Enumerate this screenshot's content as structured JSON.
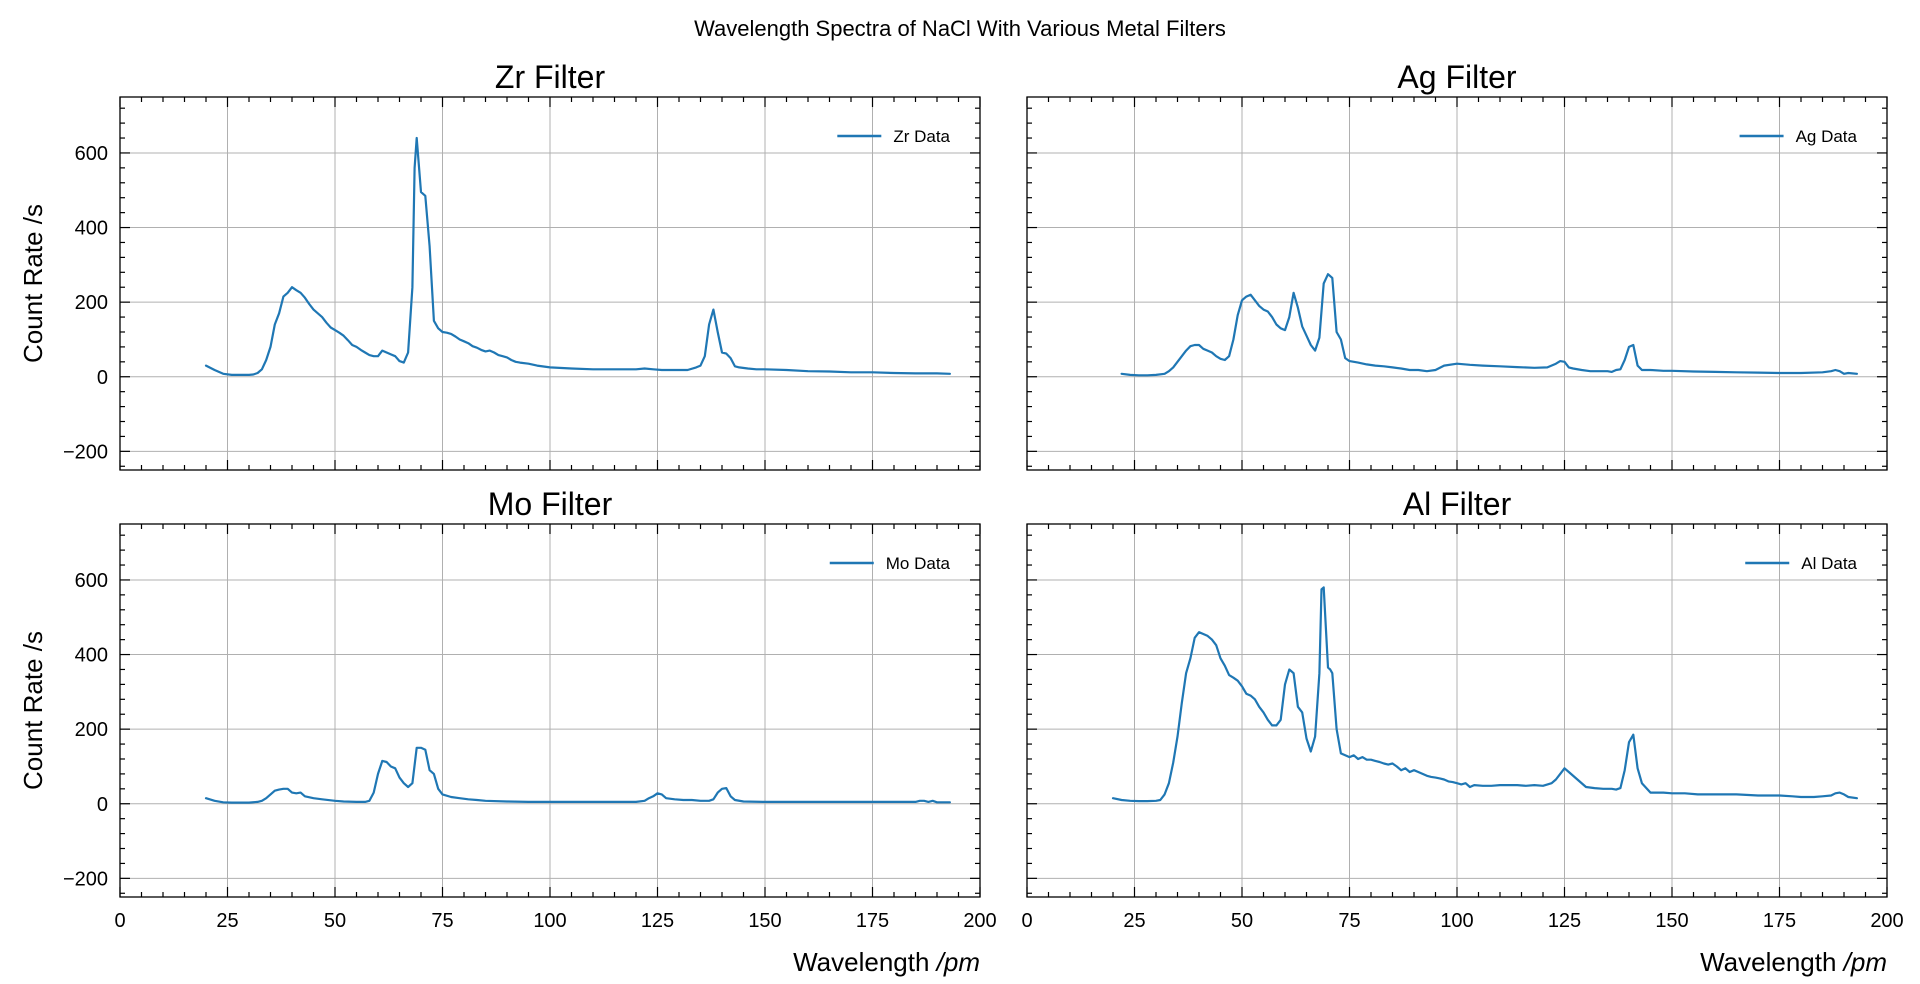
{
  "figure": {
    "suptitle": "Wavelength Spectra of NaCl With Various Metal Filters",
    "line_color": "#1f77b4"
  },
  "chart_data": [
    {
      "type": "line",
      "title": "Zr Filter",
      "xlabel": "",
      "ylabel": "Count Rate /s",
      "xlim": [
        0,
        200
      ],
      "ylim": [
        -250,
        750
      ],
      "xticks": [
        0,
        25,
        50,
        75,
        100,
        125,
        150,
        175,
        200
      ],
      "yticks": [
        -200,
        0,
        200,
        400,
        600
      ],
      "show_xtick_labels": false,
      "show_ytick_labels": true,
      "grid": true,
      "legend_position": "top-right",
      "series": [
        {
          "name": "Zr Data",
          "x": [
            20,
            22,
            24,
            26,
            28,
            30,
            31,
            32,
            33,
            34,
            35,
            36,
            37,
            38,
            39,
            40,
            41,
            42,
            43,
            44,
            45,
            46,
            47,
            48,
            49,
            50,
            51,
            52,
            53,
            54,
            55,
            56,
            57,
            58,
            59,
            60,
            61,
            62,
            63,
            64,
            65,
            66,
            67,
            68,
            68.5,
            69,
            70,
            71,
            72,
            73,
            74,
            75,
            76,
            77,
            78,
            79,
            80,
            81,
            82,
            83,
            84,
            85,
            86,
            87,
            88,
            89,
            90,
            91,
            92,
            93,
            95,
            97,
            100,
            105,
            110,
            115,
            120,
            122,
            124,
            126,
            128,
            130,
            132,
            134,
            135,
            136,
            137,
            138,
            139,
            140,
            141,
            142,
            143,
            144,
            146,
            148,
            150,
            155,
            160,
            165,
            170,
            175,
            180,
            185,
            190,
            193
          ],
          "y": [
            30,
            18,
            8,
            5,
            5,
            5,
            6,
            10,
            20,
            45,
            80,
            140,
            170,
            215,
            225,
            240,
            232,
            225,
            212,
            195,
            180,
            170,
            160,
            145,
            132,
            125,
            118,
            110,
            98,
            85,
            80,
            72,
            65,
            58,
            55,
            55,
            70,
            65,
            60,
            55,
            42,
            38,
            65,
            240,
            560,
            640,
            495,
            485,
            350,
            150,
            130,
            120,
            118,
            115,
            108,
            100,
            95,
            90,
            82,
            78,
            72,
            68,
            70,
            65,
            58,
            55,
            52,
            45,
            40,
            38,
            35,
            30,
            25,
            22,
            20,
            20,
            20,
            22,
            20,
            18,
            18,
            18,
            18,
            25,
            30,
            55,
            140,
            180,
            120,
            65,
            62,
            50,
            28,
            25,
            22,
            20,
            20,
            18,
            15,
            14,
            12,
            12,
            10,
            9,
            9,
            8
          ]
        }
      ]
    },
    {
      "type": "line",
      "title": "Ag Filter",
      "xlabel": "",
      "ylabel": "",
      "xlim": [
        0,
        200
      ],
      "ylim": [
        -250,
        750
      ],
      "xticks": [
        0,
        25,
        50,
        75,
        100,
        125,
        150,
        175,
        200
      ],
      "yticks": [
        -200,
        0,
        200,
        400,
        600
      ],
      "show_xtick_labels": false,
      "show_ytick_labels": false,
      "grid": true,
      "legend_position": "top-right",
      "series": [
        {
          "name": "Ag Data",
          "x": [
            22,
            24,
            26,
            28,
            30,
            32,
            33,
            34,
            35,
            36,
            37,
            38,
            39,
            40,
            41,
            42,
            43,
            44,
            45,
            46,
            47,
            48,
            49,
            50,
            51,
            52,
            53,
            54,
            55,
            56,
            57,
            58,
            59,
            60,
            61,
            62,
            63,
            64,
            65,
            66,
            67,
            68,
            69,
            70,
            71,
            72,
            73,
            74,
            75,
            77,
            79,
            81,
            83,
            85,
            87,
            89,
            91,
            93,
            95,
            97,
            100,
            103,
            106,
            110,
            114,
            118,
            121,
            123,
            124,
            125,
            126,
            127,
            129,
            131,
            133,
            135,
            136,
            137,
            138,
            139,
            140,
            141,
            142,
            143,
            145,
            148,
            150,
            155,
            160,
            165,
            170,
            175,
            180,
            185,
            187,
            188,
            189,
            190,
            191,
            193
          ],
          "y": [
            8,
            5,
            4,
            4,
            5,
            8,
            15,
            25,
            40,
            55,
            70,
            82,
            85,
            85,
            75,
            70,
            65,
            55,
            48,
            45,
            55,
            100,
            165,
            205,
            215,
            220,
            205,
            190,
            180,
            175,
            160,
            140,
            130,
            125,
            160,
            225,
            185,
            135,
            110,
            85,
            70,
            105,
            250,
            275,
            265,
            120,
            100,
            50,
            42,
            38,
            33,
            30,
            28,
            25,
            22,
            18,
            18,
            15,
            18,
            30,
            35,
            32,
            30,
            28,
            26,
            24,
            25,
            35,
            42,
            40,
            25,
            22,
            18,
            15,
            15,
            15,
            13,
            18,
            20,
            45,
            80,
            85,
            30,
            18,
            18,
            16,
            16,
            14,
            13,
            12,
            11,
            10,
            10,
            12,
            15,
            18,
            15,
            8,
            10,
            8
          ]
        }
      ]
    },
    {
      "type": "line",
      "title": "Mo Filter",
      "xlabel": "Wavelength /pm",
      "ylabel": "Count Rate /s",
      "xlim": [
        0,
        200
      ],
      "ylim": [
        -250,
        750
      ],
      "xticks": [
        0,
        25,
        50,
        75,
        100,
        125,
        150,
        175,
        200
      ],
      "yticks": [
        -200,
        0,
        200,
        400,
        600
      ],
      "show_xtick_labels": true,
      "show_ytick_labels": true,
      "grid": true,
      "legend_position": "top-right",
      "series": [
        {
          "name": "Mo Data",
          "x": [
            20,
            22,
            24,
            26,
            28,
            30,
            32,
            33,
            34,
            35,
            36,
            37,
            38,
            39,
            40,
            41,
            42,
            43,
            45,
            47,
            50,
            52,
            55,
            57,
            58,
            59,
            60,
            61,
            62,
            63,
            64,
            65,
            66,
            67,
            68,
            69,
            70,
            71,
            72,
            73,
            74,
            75,
            77,
            79,
            81,
            83,
            85,
            90,
            95,
            100,
            105,
            110,
            115,
            120,
            122,
            123,
            124,
            125,
            126,
            127,
            129,
            131,
            133,
            135,
            137,
            138,
            139,
            140,
            141,
            142,
            143,
            145,
            150,
            155,
            160,
            165,
            170,
            175,
            180,
            185,
            186,
            187,
            188,
            189,
            190,
            193
          ],
          "y": [
            15,
            8,
            4,
            3,
            3,
            3,
            5,
            8,
            15,
            25,
            35,
            38,
            40,
            40,
            30,
            28,
            30,
            20,
            15,
            12,
            8,
            6,
            5,
            5,
            8,
            30,
            80,
            115,
            112,
            100,
            95,
            70,
            55,
            45,
            55,
            150,
            150,
            145,
            90,
            80,
            40,
            25,
            18,
            15,
            12,
            10,
            8,
            6,
            5,
            5,
            5,
            5,
            5,
            5,
            8,
            15,
            20,
            28,
            25,
            15,
            12,
            10,
            10,
            8,
            8,
            12,
            30,
            40,
            42,
            20,
            10,
            6,
            5,
            5,
            5,
            5,
            5,
            5,
            5,
            5,
            8,
            8,
            5,
            8,
            4,
            4
          ]
        }
      ]
    },
    {
      "type": "line",
      "title": "Al Filter",
      "xlabel": "Wavelength /pm",
      "ylabel": "",
      "xlim": [
        0,
        200
      ],
      "ylim": [
        -250,
        750
      ],
      "xticks": [
        0,
        25,
        50,
        75,
        100,
        125,
        150,
        175,
        200
      ],
      "yticks": [
        -200,
        0,
        200,
        400,
        600
      ],
      "show_xtick_labels": true,
      "show_ytick_labels": false,
      "grid": true,
      "legend_position": "top-right",
      "series": [
        {
          "name": "Al Data",
          "x": [
            20,
            22,
            24,
            26,
            28,
            30,
            31,
            32,
            33,
            34,
            35,
            36,
            37,
            38,
            39,
            40,
            41,
            42,
            43,
            44,
            45,
            46,
            47,
            48,
            49,
            50,
            51,
            52,
            53,
            54,
            55,
            56,
            57,
            58,
            59,
            60,
            61,
            62,
            63,
            64,
            65,
            66,
            67,
            68,
            68.5,
            69,
            70,
            70.5,
            71,
            72,
            73,
            74,
            75,
            76,
            77,
            78,
            79,
            80,
            81,
            82,
            83,
            84,
            85,
            86,
            87,
            88,
            89,
            90,
            91,
            92,
            93,
            94,
            95,
            96,
            97,
            98,
            99,
            100,
            101,
            102,
            103,
            104,
            106,
            108,
            110,
            112,
            114,
            116,
            118,
            120,
            122,
            123,
            124,
            125,
            126,
            128,
            130,
            132,
            134,
            136,
            137,
            138,
            139,
            140,
            141,
            142,
            143,
            145,
            148,
            150,
            153,
            156,
            160,
            165,
            170,
            175,
            178,
            180,
            183,
            185,
            187,
            188,
            189,
            190,
            191,
            193
          ],
          "y": [
            15,
            10,
            8,
            7,
            7,
            8,
            10,
            25,
            55,
            110,
            180,
            270,
            350,
            390,
            445,
            460,
            455,
            450,
            440,
            425,
            390,
            370,
            345,
            338,
            330,
            315,
            295,
            290,
            280,
            260,
            245,
            225,
            210,
            210,
            225,
            320,
            360,
            350,
            260,
            245,
            175,
            140,
            180,
            350,
            575,
            580,
            365,
            360,
            350,
            200,
            135,
            130,
            125,
            130,
            120,
            125,
            118,
            118,
            115,
            112,
            108,
            105,
            108,
            100,
            90,
            95,
            85,
            90,
            85,
            80,
            75,
            72,
            70,
            68,
            65,
            60,
            58,
            55,
            52,
            55,
            45,
            50,
            48,
            48,
            50,
            50,
            50,
            48,
            50,
            48,
            55,
            65,
            80,
            95,
            85,
            65,
            45,
            42,
            40,
            40,
            38,
            42,
            90,
            165,
            185,
            95,
            55,
            30,
            30,
            28,
            28,
            25,
            25,
            25,
            22,
            22,
            20,
            18,
            18,
            20,
            22,
            28,
            30,
            25,
            18,
            15
          ]
        }
      ]
    }
  ]
}
